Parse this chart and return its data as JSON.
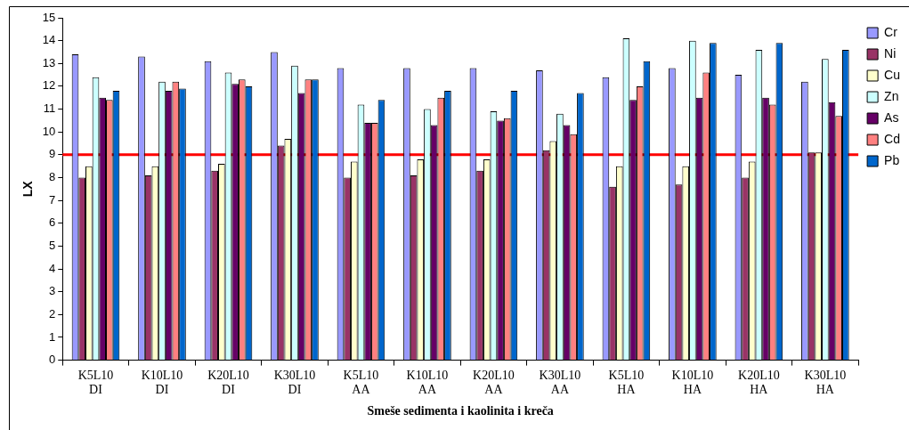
{
  "chart_data": {
    "type": "bar",
    "xlabel": "Smeše sedimenta i kaolinita i kreča",
    "ylabel": "LX",
    "categories": [
      "K5L10\nDI",
      "K10L10\nDI",
      "K20L10\nDI",
      "K30L10\nDI",
      "K5L10\nAA",
      "K10L10\nAA",
      "K20L10\nAA",
      "K30L10\nAA",
      "K5L10\nHA",
      "K10L10\nHA",
      "K20L10\nHA",
      "K30L10\nHA"
    ],
    "series": [
      {
        "name": "Cr",
        "color": "#9999ff",
        "values": [
          13.4,
          13.3,
          13.1,
          13.5,
          12.8,
          12.8,
          12.8,
          12.7,
          12.4,
          12.8,
          12.5,
          12.2
        ]
      },
      {
        "name": "Ni",
        "color": "#993366",
        "values": [
          8.0,
          8.1,
          8.3,
          9.4,
          8.0,
          8.1,
          8.3,
          9.2,
          7.6,
          7.7,
          8.0,
          9.1
        ]
      },
      {
        "name": "Cu",
        "color": "#ffffcc",
        "values": [
          8.5,
          8.5,
          8.6,
          9.7,
          8.7,
          8.8,
          8.8,
          9.6,
          8.5,
          8.5,
          8.7,
          9.1
        ]
      },
      {
        "name": "Zn",
        "color": "#ccffff",
        "values": [
          12.4,
          12.2,
          12.6,
          12.9,
          11.2,
          11.0,
          10.9,
          10.8,
          14.1,
          14.0,
          13.6,
          13.2
        ]
      },
      {
        "name": "As",
        "color": "#660066",
        "values": [
          11.5,
          11.8,
          12.1,
          11.7,
          10.4,
          10.3,
          10.5,
          10.3,
          11.4,
          11.5,
          11.5,
          11.3
        ]
      },
      {
        "name": "Cd",
        "color": "#ff8080",
        "values": [
          11.4,
          12.2,
          12.3,
          12.3,
          10.4,
          11.5,
          10.6,
          9.9,
          12.0,
          12.6,
          11.2,
          10.7
        ]
      },
      {
        "name": "Pb",
        "color": "#0066cc",
        "values": [
          11.8,
          11.9,
          12.0,
          12.3,
          11.4,
          11.8,
          11.8,
          11.7,
          13.1,
          13.9,
          13.9,
          13.6
        ]
      }
    ],
    "ylim": [
      0,
      15
    ],
    "yticks": [
      0,
      1,
      2,
      3,
      4,
      5,
      6,
      7,
      8,
      9,
      10,
      11,
      12,
      13,
      14,
      15
    ],
    "ref_lines": [
      {
        "axis": "y",
        "value": 9,
        "color": "#ff0000"
      }
    ],
    "legend": "top right"
  }
}
